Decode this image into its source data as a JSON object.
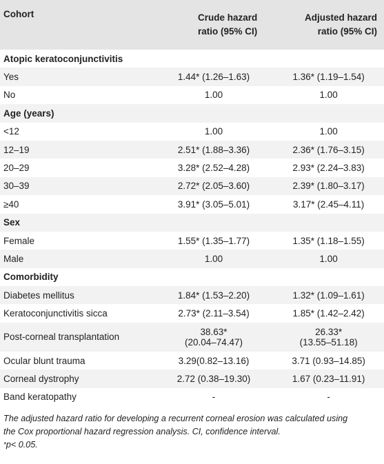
{
  "header": {
    "col0": "Cohort",
    "col1_line1": "Crude hazard",
    "col1_line2": "ratio (95% CI)",
    "col2_line1": "Adjusted hazard",
    "col2_line2": "ratio (95% CI)"
  },
  "rows": [
    {
      "type": "section",
      "label": "Atopic keratoconjunctivitis"
    },
    {
      "label": "Yes",
      "crude": "1.44* (1.26–1.63)",
      "adjusted": "1.36* (1.19–1.54)"
    },
    {
      "label": "No",
      "crude": "1.00",
      "adjusted": "1.00"
    },
    {
      "type": "section",
      "label": "Age (years)"
    },
    {
      "label": "<12",
      "crude": "1.00",
      "adjusted": "1.00"
    },
    {
      "label": "12–19",
      "crude": "2.51* (1.88–3.36)",
      "adjusted": "2.36* (1.76–3.15)"
    },
    {
      "label": "20–29",
      "crude": "3.28* (2.52–4.28)",
      "adjusted": "2.93* (2.24–3.83)"
    },
    {
      "label": "30–39",
      "crude": "2.72* (2.05–3.60)",
      "adjusted": "2.39* (1.80–3.17)"
    },
    {
      "label": "≥40",
      "crude": "3.91* (3.05–5.01)",
      "adjusted": "3.17* (2.45–4.11)"
    },
    {
      "type": "section",
      "label": "Sex"
    },
    {
      "label": "Female",
      "crude": "1.55* (1.35–1.77)",
      "adjusted": "1.35* (1.18–1.55)"
    },
    {
      "label": "Male",
      "crude": "1.00",
      "adjusted": "1.00"
    },
    {
      "type": "section",
      "label": "Comorbidity"
    },
    {
      "label": "Diabetes mellitus",
      "crude": "1.84* (1.53–2.20)",
      "adjusted": "1.32* (1.09–1.61)"
    },
    {
      "label": "Keratoconjunctivitis sicca",
      "crude": "2.73* (2.11–3.54)",
      "adjusted": "1.85* (1.42–2.42)"
    },
    {
      "label": "Post-corneal transplantation",
      "crude": "38.63*",
      "crude2": "(20.04–74.47)",
      "adjusted": "26.33*",
      "adjusted2": "(13.55–51.18)",
      "tall": true
    },
    {
      "label": "Ocular blunt trauma",
      "crude": "3.29(0.82–13.16)",
      "adjusted": "3.71 (0.93–14.85)"
    },
    {
      "label": "Corneal dystrophy",
      "crude": "2.72 (0.38–19.30)",
      "adjusted": "1.67 (0.23–11.91)"
    },
    {
      "label": "Band keratopathy",
      "crude": "-",
      "adjusted": "-"
    }
  ],
  "footnote": {
    "line1": "The adjusted hazard ratio for developing a recurrent corneal erosion was calculated using",
    "line2": "the Cox proportional hazard regression analysis. CI, confidence interval.",
    "sig_mark": "*",
    "sig_text": "p< 0.05."
  }
}
